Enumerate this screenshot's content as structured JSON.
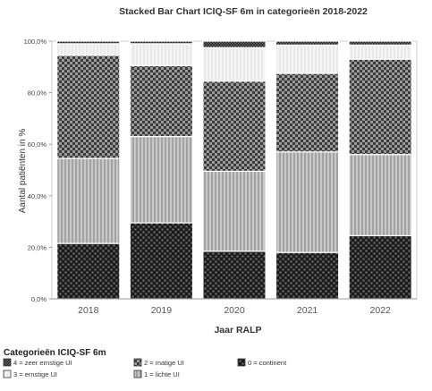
{
  "chart_data": {
    "type": "bar",
    "stacked": true,
    "title": "Stacked Bar Chart ICIQ-SF 6m in categorieën 2018-2022",
    "xlabel": "Jaar RALP",
    "ylabel": "Aantal patiënten in %",
    "ylim": [
      0,
      100
    ],
    "grid": false,
    "legend_placement": "bottom",
    "legend_title": "Categorieën ICIQ-SF 6m",
    "y_ticks": [
      "0,0%",
      "20,0%",
      "40,0%",
      "60,0%",
      "80,0%",
      "100,0%"
    ],
    "categories": [
      "2018",
      "2019",
      "2020",
      "2021",
      "2022"
    ],
    "series": [
      {
        "name": "0 = continent",
        "pattern": "dark-check",
        "values": [
          21.5,
          29.5,
          18.5,
          18.0,
          24.5
        ]
      },
      {
        "name": "1 = lichte UI",
        "pattern": "vertical-lines",
        "values": [
          33.0,
          33.5,
          31.0,
          39.0,
          31.5
        ]
      },
      {
        "name": "2 = matige UI",
        "pattern": "diamond-check",
        "values": [
          40.0,
          27.5,
          35.0,
          30.5,
          37.0
        ]
      },
      {
        "name": "3 = ernstige UI",
        "pattern": "light-lines",
        "values": [
          4.5,
          8.5,
          13.0,
          11.0,
          5.5
        ]
      },
      {
        "name": "4 = zeer ernstige UI",
        "pattern": "fine-check",
        "values": [
          1.0,
          1.0,
          2.5,
          1.5,
          1.5
        ]
      }
    ]
  }
}
